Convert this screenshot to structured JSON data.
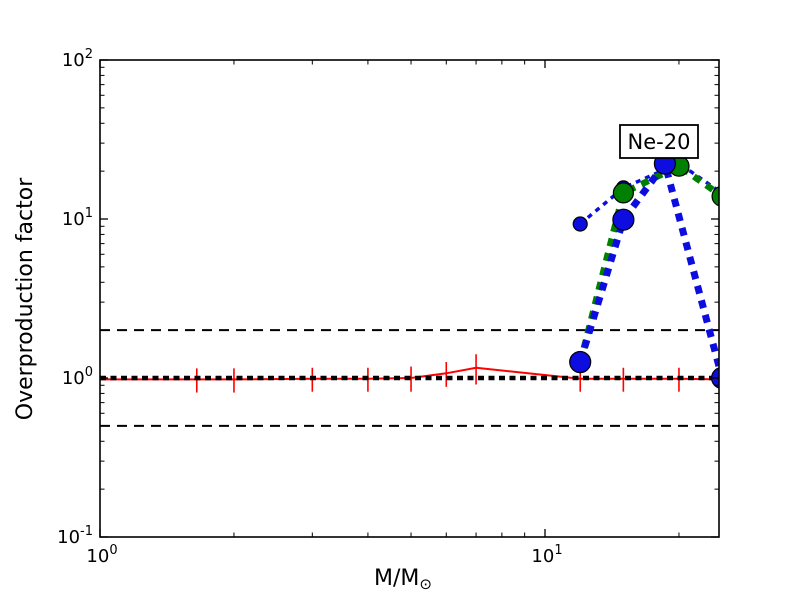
{
  "chart_data": {
    "type": "line",
    "title": "",
    "xlabel": "M/M⊙",
    "ylabel": "Overproduction factor",
    "xscale": "log",
    "yscale": "log",
    "xlim": [
      1.0,
      24.6
    ],
    "ylim": [
      0.1,
      100
    ],
    "grid": false,
    "legend": "none",
    "annotation": {
      "text": "Ne-20"
    },
    "axes": {
      "x": {
        "major_ticks": [
          1,
          10
        ],
        "minor_ticks": [
          2,
          3,
          4,
          5,
          6,
          7,
          8,
          9,
          20
        ],
        "tick_labels": [
          {
            "base": "10",
            "exp": "0"
          },
          {
            "base": "10",
            "exp": "1"
          }
        ]
      },
      "y": {
        "major_ticks": [
          100,
          10,
          1,
          0.1
        ],
        "minor_ticks": [
          0.2,
          0.3,
          0.4,
          0.5,
          0.6,
          0.7,
          0.8,
          0.9,
          2,
          3,
          4,
          5,
          6,
          7,
          8,
          9,
          20,
          30,
          40,
          50,
          60,
          70,
          80,
          90
        ],
        "tick_labels": [
          {
            "base": "10",
            "exp": "2"
          },
          {
            "base": "10",
            "exp": "1"
          },
          {
            "base": "10",
            "exp": "0"
          },
          {
            "base": "10",
            "exp": "-1"
          }
        ]
      }
    },
    "reference_lines": [
      {
        "y": 2.0,
        "color": "#000000",
        "style": "dashed",
        "width": 2
      },
      {
        "y": 1.0,
        "color": "#000000",
        "style": "dashed",
        "width": 4.5
      },
      {
        "y": 0.5,
        "color": "#000000",
        "style": "dashed",
        "width": 2
      }
    ],
    "series": [
      {
        "name": "red-solid-errorbar",
        "color": "#ff0000",
        "line": "solid",
        "width": 2,
        "marker_r": 0,
        "x": [
          1.0,
          1.65,
          2.0,
          3.0,
          4.0,
          5.0,
          6.0,
          7.0,
          12.0,
          15.0,
          20.0,
          25.0
        ],
        "y": [
          0.98,
          0.98,
          0.98,
          0.99,
          0.99,
          1.0,
          1.07,
          1.16,
          0.99,
          0.99,
          0.99,
          0.98
        ],
        "yerr": [
          0,
          0.17,
          0.17,
          0.17,
          0.17,
          0.18,
          0.19,
          0.25,
          0.17,
          0.17,
          0.17,
          0.17
        ]
      },
      {
        "name": "blue-thin-dotted",
        "color": "#0d0de0",
        "line": "dotted",
        "width": 3.5,
        "marker_r": 7,
        "x": [
          12.0,
          15.0,
          20.0,
          25.0
        ],
        "y": [
          9.3,
          15.7,
          22.4,
          14.5
        ],
        "yerr": []
      },
      {
        "name": "green-thick-dotted",
        "color": "#008000",
        "line": "dotted",
        "width": 6.5,
        "marker_r": 10,
        "x": [
          12.0,
          15.0,
          20.0,
          25.0
        ],
        "y": [
          1.25,
          14.6,
          21.5,
          13.9
        ],
        "yerr": []
      },
      {
        "name": "blue-thick-dotted",
        "color": "#0d0de0",
        "line": "dotted",
        "width": 7,
        "marker_r": 10.5,
        "x": [
          12.0,
          15.0,
          18.6,
          25.0
        ],
        "y": [
          1.26,
          9.9,
          22.3,
          1.0
        ],
        "yerr": []
      }
    ]
  }
}
